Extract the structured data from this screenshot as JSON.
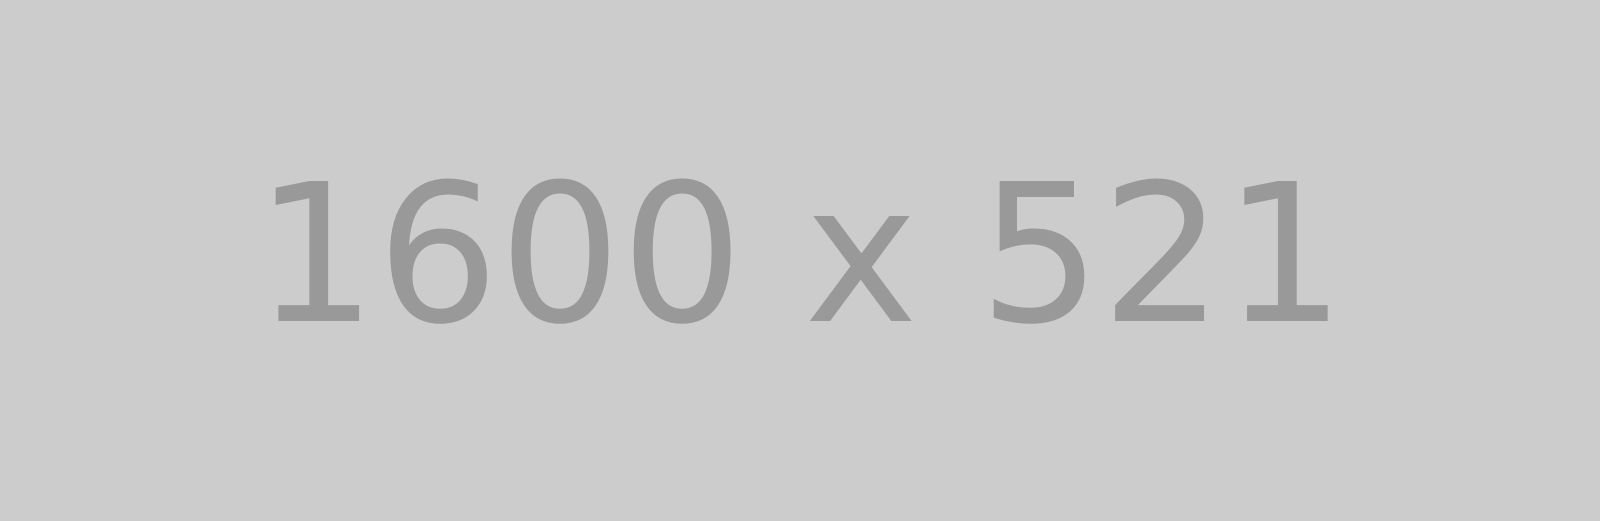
{
  "placeholder": {
    "label": "1600 x 521",
    "background_color": "#cccccc",
    "text_color": "#999999"
  }
}
